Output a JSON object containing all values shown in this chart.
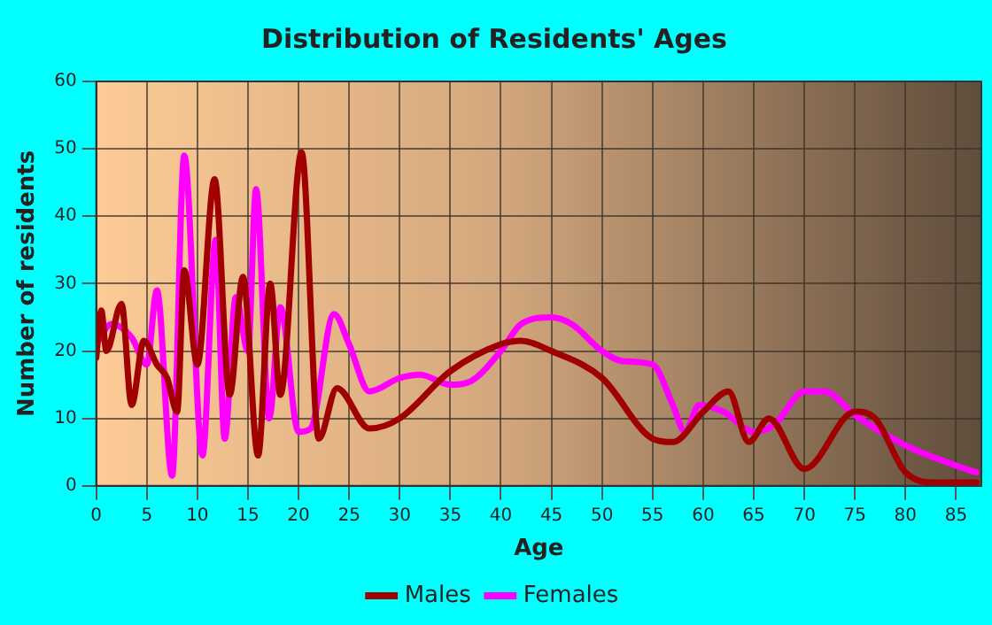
{
  "chart_data": {
    "type": "line",
    "title": "Distribution of Residents' Ages",
    "xlabel": "Age",
    "ylabel": "Number of residents",
    "xlim": [
      0,
      87.5
    ],
    "xticks": [
      0,
      5,
      10,
      15,
      20,
      25,
      30,
      35,
      40,
      45,
      50,
      55,
      60,
      65,
      70,
      75,
      80,
      85
    ],
    "ylim": [
      0,
      60
    ],
    "yticks": [
      0,
      10,
      20,
      30,
      40,
      50,
      60
    ],
    "grid": true,
    "legend": "bottom",
    "marker": "none",
    "line_style": "solid",
    "series": [
      {
        "name": "Males",
        "color": "#a00000",
        "x": [
          0,
          0.5,
          1,
          2.5,
          3.5,
          4.7,
          6,
          7,
          8,
          8.7,
          10,
          11.7,
          13.2,
          14.5,
          16,
          17.2,
          18.2,
          20.3,
          22,
          23.8,
          27,
          30,
          35,
          40,
          42,
          45,
          50,
          55,
          57,
          60,
          62.5,
          64.5,
          66.5,
          70,
          75,
          77,
          80,
          83,
          87
        ],
        "values": [
          19,
          26,
          20,
          27,
          12,
          21.5,
          18,
          16,
          11,
          32,
          18,
          45.5,
          13.5,
          31,
          4.5,
          30,
          13.5,
          49.5,
          7,
          14.5,
          8.5,
          10,
          17,
          21,
          21.5,
          20,
          16,
          7,
          6.5,
          11,
          14,
          6.5,
          10,
          2.5,
          11,
          10,
          2,
          0.5,
          0.5
        ]
      },
      {
        "name": "Females",
        "color": "#ff00ff",
        "x": [
          0,
          1.5,
          3.5,
          5,
          6,
          7.5,
          8.7,
          10.5,
          11.8,
          12.7,
          13.8,
          15,
          15.8,
          17.1,
          18.2,
          20,
          21.2,
          23.5,
          25,
          27,
          30,
          32,
          35,
          37,
          40,
          42,
          45,
          47,
          50,
          52,
          55,
          57,
          58.2,
          59.6,
          62,
          65,
          67,
          70,
          72,
          75,
          80,
          85,
          87
        ],
        "values": [
          21,
          24,
          22,
          18,
          29,
          1.5,
          49,
          4.5,
          36.5,
          7,
          28,
          20,
          44,
          10,
          26.5,
          8,
          8.5,
          25.5,
          21,
          14,
          16,
          16.5,
          15,
          15.5,
          20,
          24,
          25,
          24,
          20,
          18.5,
          18,
          12,
          8,
          12,
          11,
          8,
          9,
          14,
          14,
          10.5,
          6,
          3,
          2
        ]
      }
    ]
  }
}
